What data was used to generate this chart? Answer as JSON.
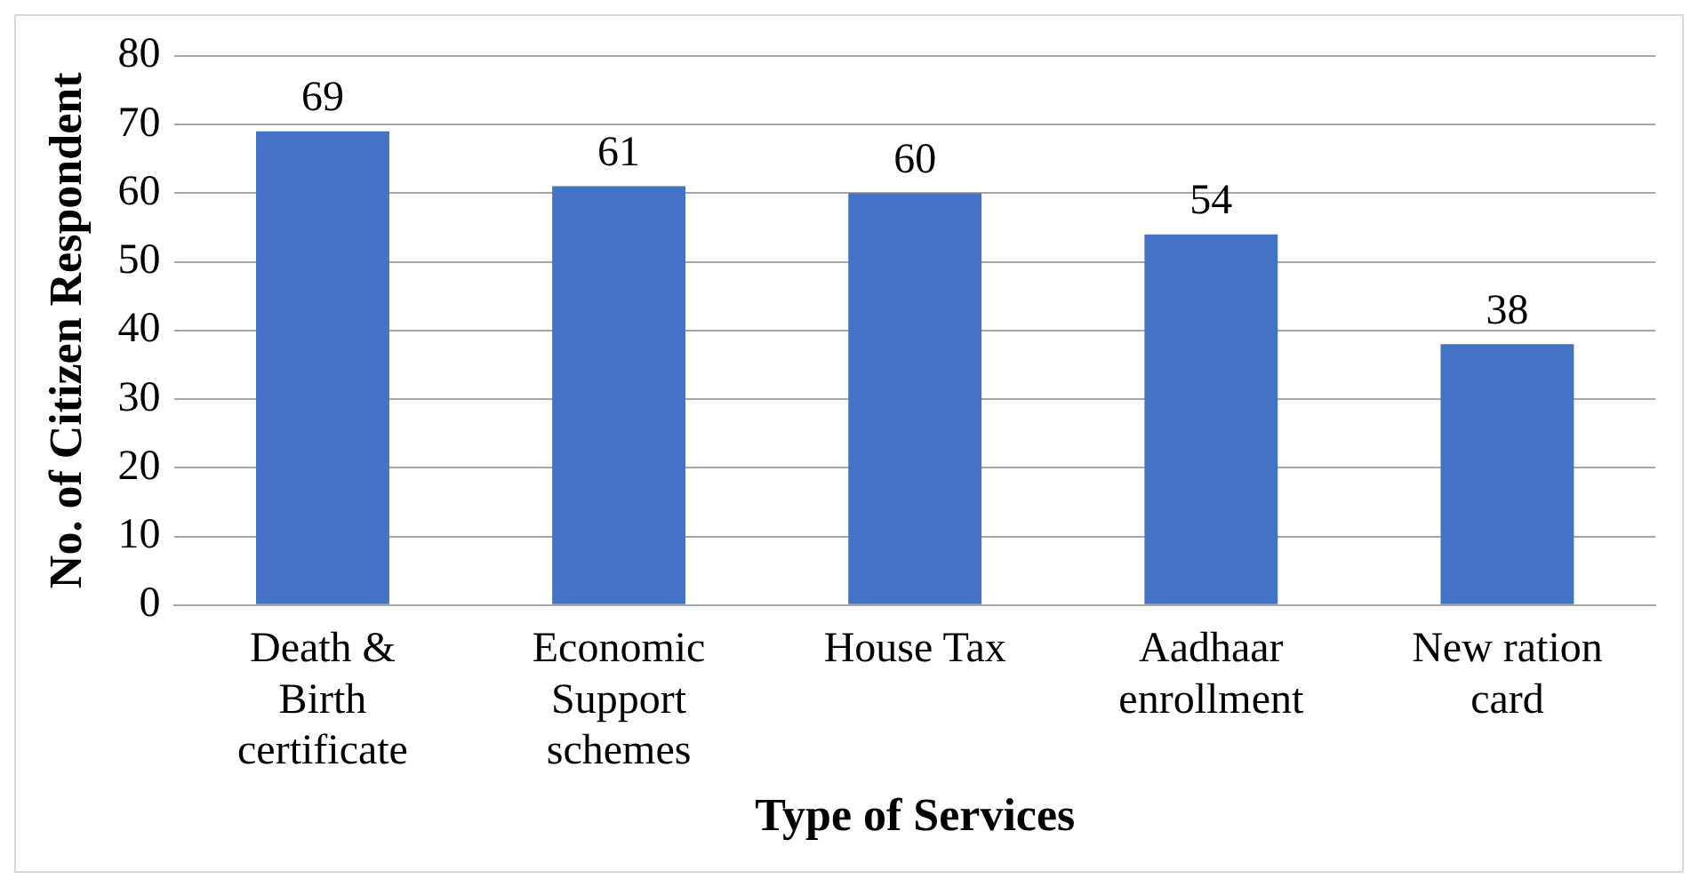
{
  "chart_data": {
    "type": "bar",
    "xlabel": "Type of Services",
    "ylabel": "No. of Citizen Respondent",
    "categories": [
      "Death & Birth certificate",
      "Economic Support schemes",
      "House Tax",
      "Aadhaar enrollment",
      "New ration card"
    ],
    "values": [
      69,
      61,
      60,
      54,
      38
    ],
    "color": "#4472c4",
    "ylim": [
      0,
      80
    ],
    "yticks": [
      0,
      10,
      20,
      30,
      40,
      50,
      60,
      70,
      80
    ],
    "grid": "y",
    "data_labels": true
  }
}
